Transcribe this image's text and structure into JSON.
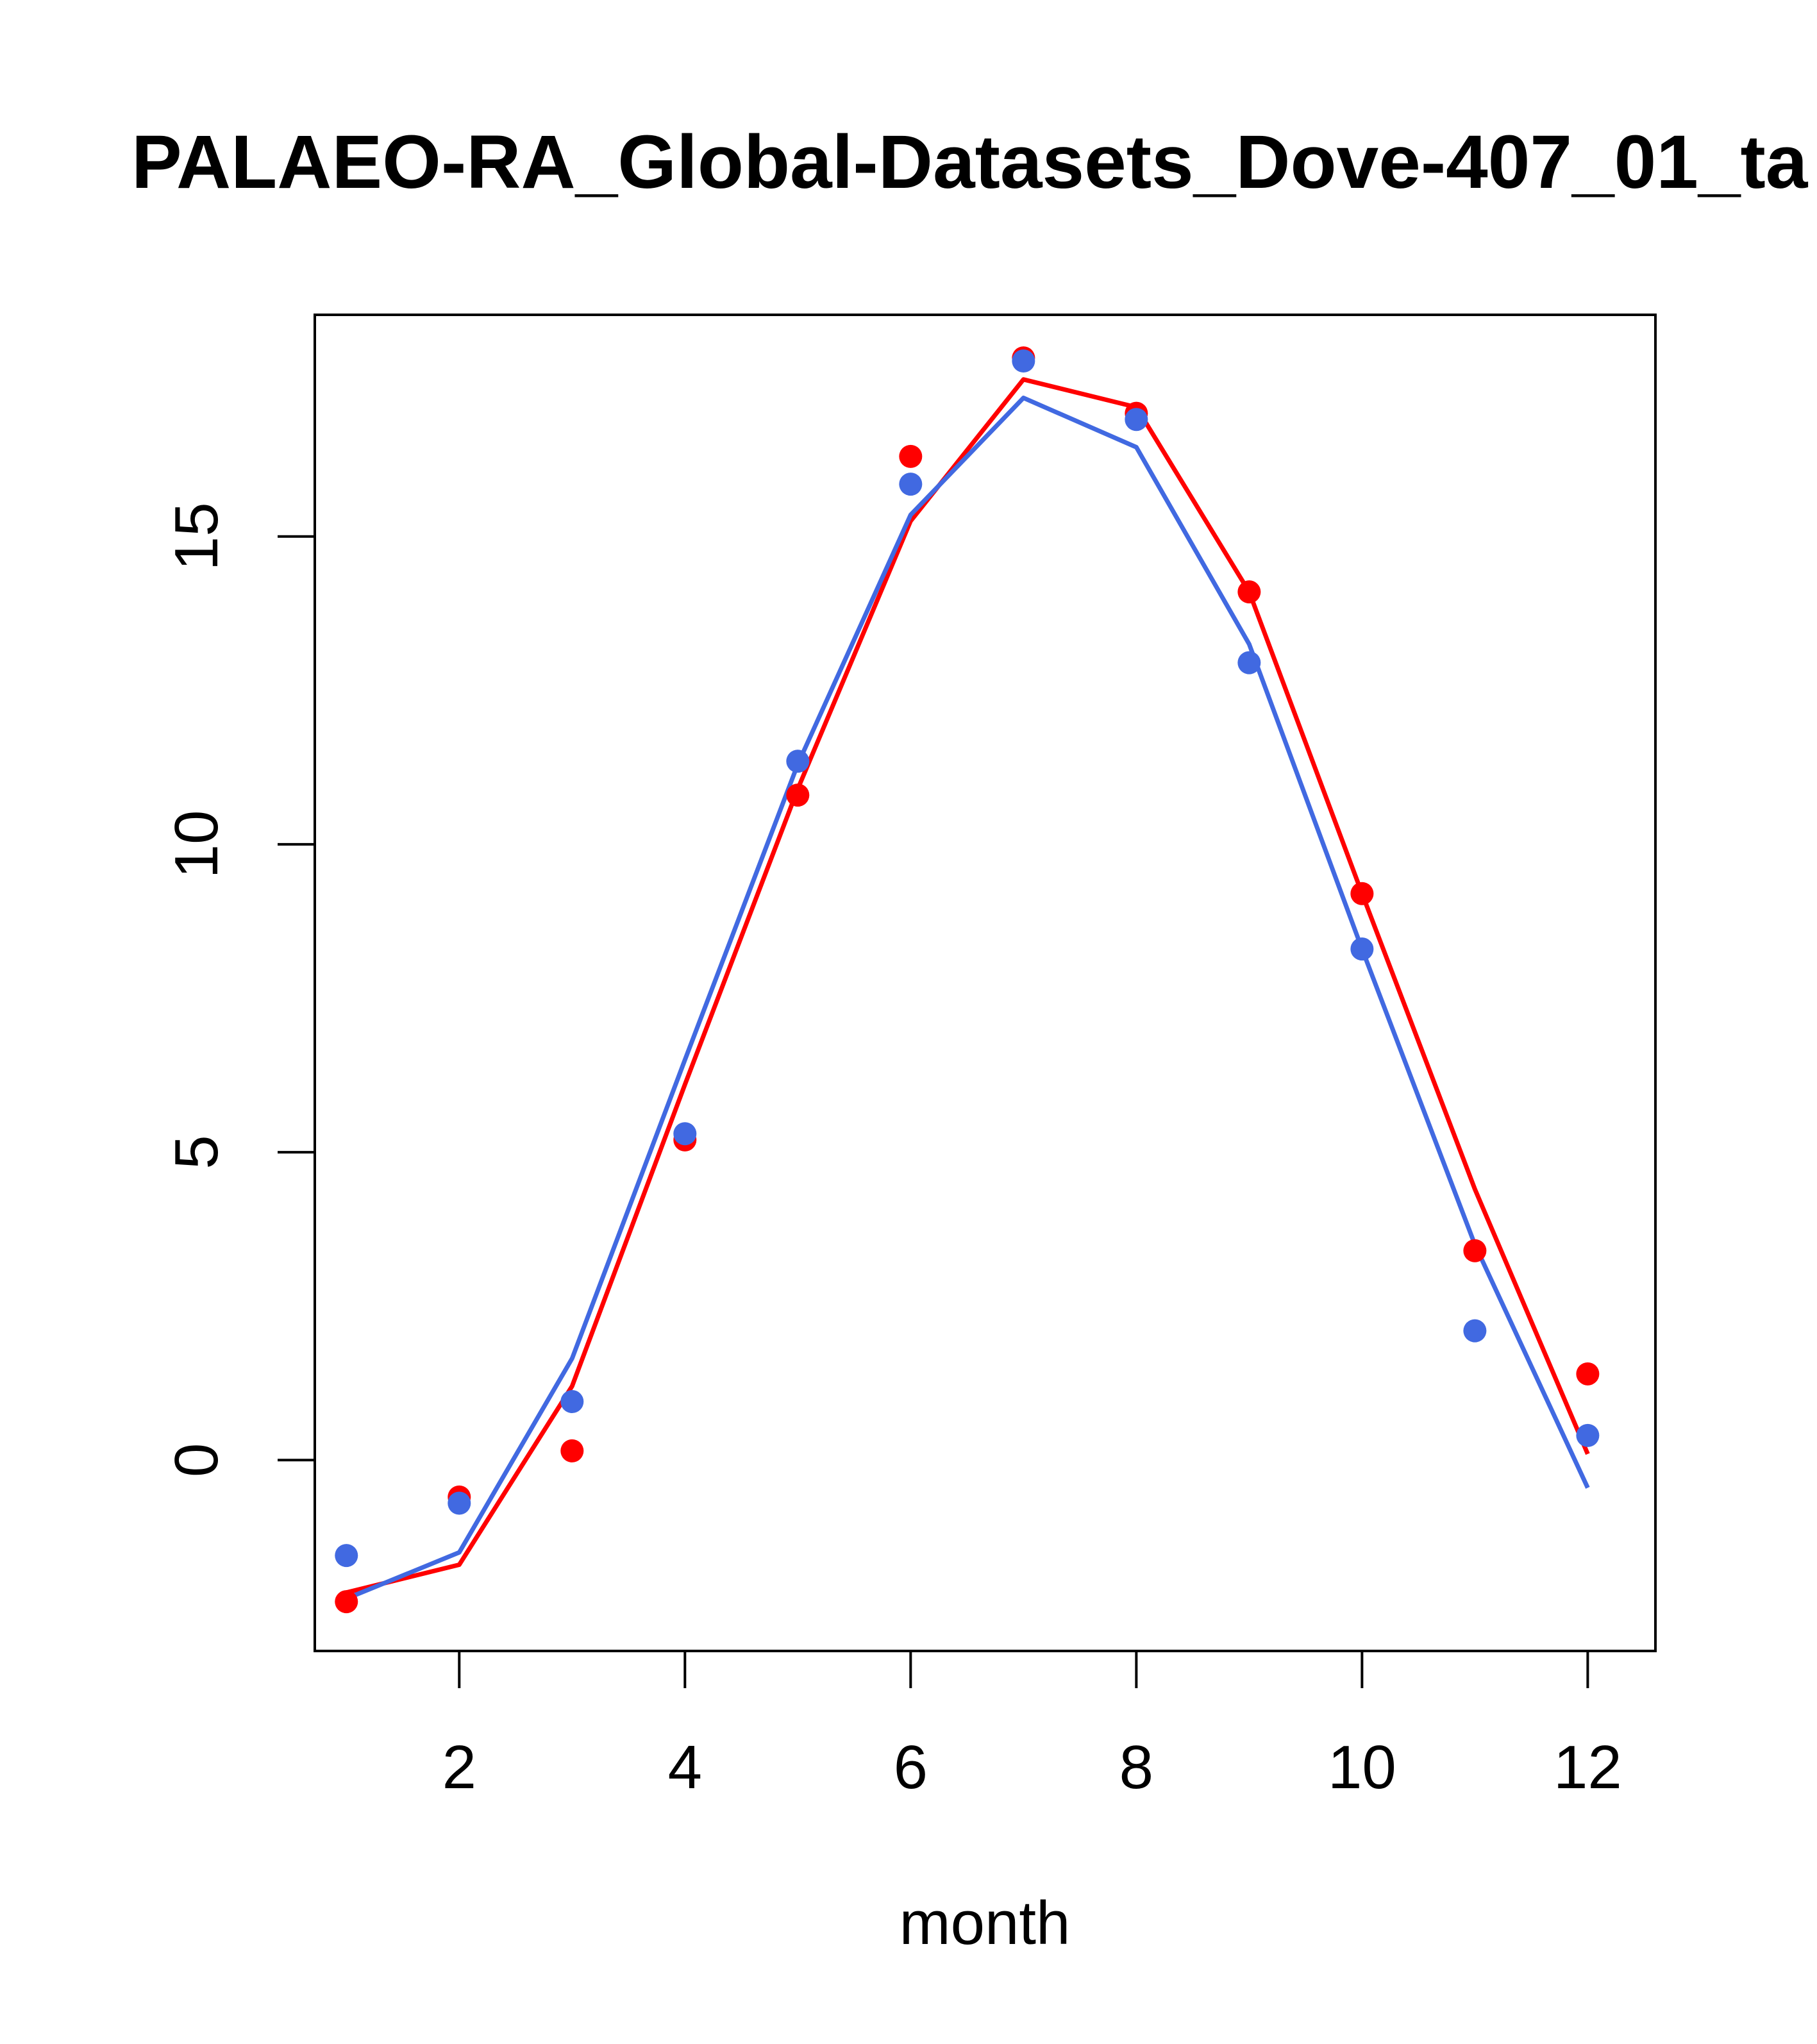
{
  "chart_data": {
    "type": "line",
    "title": "PALAEO-RA_Global-Datasets_Dove-407_01_ta",
    "xlabel": "month",
    "ylabel": "",
    "x": [
      1,
      2,
      3,
      4,
      5,
      6,
      7,
      8,
      9,
      10,
      11,
      12
    ],
    "xlim": [
      0.72,
      12.6
    ],
    "ylim": [
      -3.1,
      18.6
    ],
    "x_ticks": [
      2,
      4,
      6,
      8,
      10,
      12
    ],
    "y_ticks": [
      0,
      5,
      10,
      15
    ],
    "grid": false,
    "legend": "none",
    "series": [
      {
        "color": "#ff0000",
        "lines": [
          -2.15,
          -1.7,
          1.2,
          6.1,
          10.9,
          15.25,
          17.55,
          17.1,
          14.1,
          9.2,
          4.4,
          0.1
        ],
        "points": [
          -2.3,
          -0.6,
          0.15,
          5.2,
          10.8,
          16.3,
          17.9,
          17.0,
          14.1,
          9.2,
          3.4,
          1.4
        ]
      },
      {
        "color": "#4169e1",
        "lines": [
          -2.25,
          -1.5,
          1.65,
          6.5,
          11.3,
          15.35,
          17.25,
          16.45,
          13.25,
          8.3,
          3.5,
          -0.45
        ],
        "points": [
          -1.55,
          -0.7,
          0.95,
          5.3,
          11.35,
          15.85,
          17.85,
          16.9,
          12.95,
          8.3,
          2.1,
          0.4
        ]
      }
    ]
  }
}
